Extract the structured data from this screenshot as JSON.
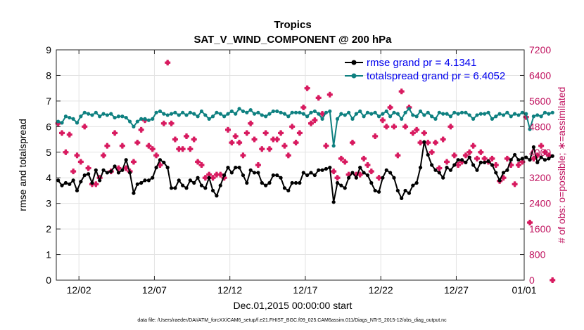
{
  "chart_data": {
    "type": "line",
    "title": "Tropics",
    "subtitle": "SAT_V_WIND_COMPONENT @ 200 hPa",
    "xlabel": "Dec.01,2015 00:00:00 start",
    "ylabel": "rmse and totalspread",
    "ylabel_right": "# of obs: o=possible; ∗=assimilated",
    "footnote": "data file: /Users/raeder/DAI/ATM_forcXX/CAM6_setup/f.e21.FHIST_BGC.f09_025.CAM6assim.011/Diags_NTrS_2015-12/obs_diag_output.nc",
    "xlim": [
      0.0,
      31.0
    ],
    "ylim": [
      0,
      9
    ],
    "ylim_right": [
      0,
      7200
    ],
    "x_ticks": [
      1.5,
      6.5,
      11.5,
      16.5,
      21.5,
      26.5,
      31.0
    ],
    "x_tick_labels": [
      "12/02",
      "12/07",
      "12/12",
      "12/17",
      "12/22",
      "12/27",
      "01/01"
    ],
    "y_ticks": [
      0,
      1,
      2,
      3,
      4,
      5,
      6,
      7,
      8,
      9
    ],
    "y_tick_labels": [
      "0",
      "1",
      "2",
      "3",
      "4",
      "5",
      "6",
      "7",
      "8",
      "9"
    ],
    "y_ticks_right": [
      0,
      800,
      1600,
      2400,
      3200,
      4000,
      4800,
      5600,
      6400,
      7200
    ],
    "y_tick_labels_right": [
      "0",
      "800",
      "1600",
      "2400",
      "3200",
      "4000",
      "4800",
      "5600",
      "6400",
      "7200"
    ],
    "x_start": 0.125,
    "x_step": 0.25,
    "series": [
      {
        "name": "rmse grand pr = 4.1341",
        "color": "#000000",
        "marker": "dot",
        "values": [
          3.9,
          3.7,
          3.8,
          3.75,
          3.9,
          3.5,
          3.85,
          4.1,
          4.15,
          3.8,
          4.3,
          3.9,
          4.3,
          4.2,
          4.25,
          4.45,
          4.2,
          4.3,
          4.7,
          4.2,
          3.4,
          3.75,
          3.8,
          3.9,
          3.9,
          4.0,
          4.4,
          4.7,
          4.6,
          4.4,
          3.6,
          3.6,
          3.9,
          3.7,
          3.6,
          3.9,
          3.8,
          4.0,
          3.7,
          3.6,
          4.0,
          3.5,
          3.3,
          3.7,
          4.1,
          4.4,
          4.2,
          4.4,
          4.4,
          4.1,
          3.8,
          4.3,
          4.2,
          4.2,
          3.8,
          3.7,
          3.8,
          4.1,
          4.1,
          4.0,
          3.6,
          3.5,
          3.8,
          3.8,
          3.8,
          4.2,
          4.1,
          4.2,
          4.1,
          4.3,
          4.3,
          4.35,
          4.4,
          3.05,
          3.8,
          3.7,
          3.6,
          4.0,
          4.2,
          4.0,
          4.4,
          4.2,
          4.1,
          3.8,
          3.5,
          3.45,
          4.0,
          4.3,
          4.2,
          4.0,
          3.5,
          3.2,
          3.5,
          3.4,
          3.7,
          3.8,
          4.4,
          5.4,
          4.9,
          4.5,
          4.3,
          4.2,
          4.0,
          4.4,
          4.3,
          4.5,
          4.7,
          4.7,
          4.6,
          4.8,
          4.5,
          4.3,
          4.6,
          4.6,
          4.65,
          4.5,
          4.2,
          3.9,
          4.2,
          4.3,
          4.7,
          4.9,
          4.7,
          4.75,
          4.8,
          4.7,
          5.2,
          4.6,
          4.8,
          4.7,
          4.75,
          4.85
        ]
      },
      {
        "name": "totalspread grand pr = 6.4052",
        "color": "#0e8080",
        "marker": "dot",
        "values": [
          6.2,
          6.15,
          6.4,
          6.35,
          6.3,
          6.15,
          6.4,
          6.55,
          6.5,
          6.45,
          6.55,
          6.4,
          6.5,
          6.45,
          6.5,
          6.35,
          6.4,
          6.4,
          6.35,
          6.2,
          6.0,
          6.2,
          6.3,
          6.3,
          6.25,
          6.3,
          6.55,
          6.6,
          6.5,
          6.45,
          6.5,
          6.55,
          6.45,
          6.55,
          6.45,
          6.55,
          6.5,
          6.4,
          6.6,
          6.45,
          6.3,
          6.4,
          6.55,
          6.5,
          6.4,
          6.5,
          6.6,
          6.5,
          6.7,
          6.6,
          6.55,
          6.65,
          6.5,
          6.55,
          6.45,
          6.4,
          6.5,
          6.6,
          6.6,
          6.55,
          6.5,
          6.4,
          6.55,
          6.55,
          6.55,
          6.5,
          6.4,
          6.55,
          6.6,
          6.5,
          6.3,
          6.55,
          6.6,
          5.25,
          6.3,
          6.5,
          6.45,
          6.55,
          6.3,
          6.5,
          6.6,
          6.4,
          6.55,
          6.5,
          6.55,
          6.4,
          6.5,
          6.6,
          6.4,
          6.55,
          6.5,
          6.3,
          6.55,
          6.7,
          6.45,
          6.4,
          6.6,
          6.45,
          6.55,
          6.4,
          6.3,
          6.55,
          6.5,
          6.5,
          6.4,
          6.55,
          6.5,
          6.55,
          6.55,
          6.45,
          6.3,
          6.45,
          6.5,
          6.5,
          6.55,
          6.3,
          6.4,
          6.5,
          6.45,
          6.55,
          6.4,
          6.5,
          6.45,
          6.55,
          6.5,
          5.9,
          6.4,
          6.45,
          6.4,
          6.55,
          6.5,
          6.55
        ]
      },
      {
        "name": "# assimilated",
        "axis": "right",
        "color": "#d81b60",
        "marker": "star",
        "values": [
          4900,
          4600,
          4000,
          4550,
          3400,
          3900,
          3700,
          4800,
          3500,
          3000,
          3000,
          3200,
          3900,
          4200,
          3400,
          4600,
          3500,
          4200,
          3500,
          3400,
          3700,
          4300,
          4700,
          5000,
          4200,
          4100,
          3900,
          3600,
          4900,
          6800,
          4900,
          4400,
          4100,
          4100,
          4500,
          4100,
          4400,
          3700,
          3600,
          3200,
          3300,
          3200,
          3300,
          3300,
          3200,
          4700,
          4300,
          4500,
          4300,
          3900,
          4600,
          4900,
          4400,
          3600,
          4100,
          4600,
          4100,
          4400,
          4400,
          4600,
          4200,
          3900,
          4800,
          4300,
          4600,
          5400,
          6000,
          4900,
          5000,
          5700,
          5200,
          4200,
          5800,
          3400,
          3200,
          3800,
          3700,
          3300,
          4300,
          3300,
          3300,
          3800,
          3600,
          3400,
          4500,
          3200,
          5000,
          4800,
          5400,
          4800,
          3900,
          5900,
          4800,
          5400,
          4600,
          4700,
          4300,
          4600,
          4300,
          4000,
          4300,
          3500,
          4400,
          3700,
          4800,
          3900,
          3600,
          3700,
          3900,
          4000,
          4200,
          3800,
          4000,
          3800,
          3700,
          3800,
          3600,
          3100,
          3200,
          3800,
          3600,
          3000,
          3600,
          3700,
          5100,
          1800,
          3800,
          3900,
          4200,
          4000,
          3900,
          0
        ]
      }
    ]
  }
}
